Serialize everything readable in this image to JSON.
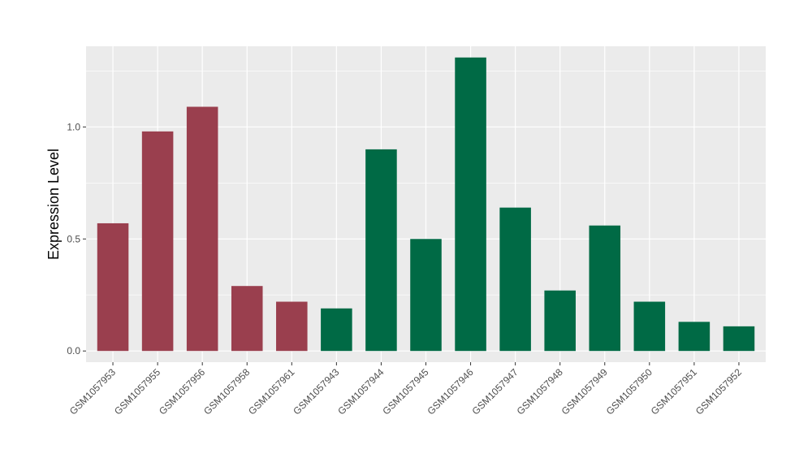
{
  "chart_data": {
    "type": "bar",
    "title": "",
    "xlabel": "",
    "ylabel": "Expression Level",
    "ylim": [
      -0.05,
      1.36
    ],
    "yticks": [
      0.0,
      0.5,
      1.0
    ],
    "ytick_labels": [
      "0.0",
      "0.5",
      "1.0"
    ],
    "grid": true,
    "legend": "none",
    "categories": [
      "GSM1057953",
      "GSM1057955",
      "GSM1057956",
      "GSM1057958",
      "GSM1057961",
      "GSM1057943",
      "GSM1057944",
      "GSM1057945",
      "GSM1057946",
      "GSM1057947",
      "GSM1057948",
      "GSM1057949",
      "GSM1057950",
      "GSM1057951",
      "GSM1057952"
    ],
    "values": [
      0.57,
      0.98,
      1.09,
      0.29,
      0.22,
      0.19,
      0.9,
      0.5,
      1.31,
      0.64,
      0.27,
      0.56,
      0.22,
      0.13,
      0.11
    ],
    "group_of_bar": [
      0,
      0,
      0,
      0,
      0,
      1,
      1,
      1,
      1,
      1,
      1,
      1,
      1,
      1,
      1
    ],
    "group_colors": [
      "#9a3f4e",
      "#006a45"
    ],
    "panel_color": "#ebebeb",
    "grid_color": "#ffffff"
  }
}
